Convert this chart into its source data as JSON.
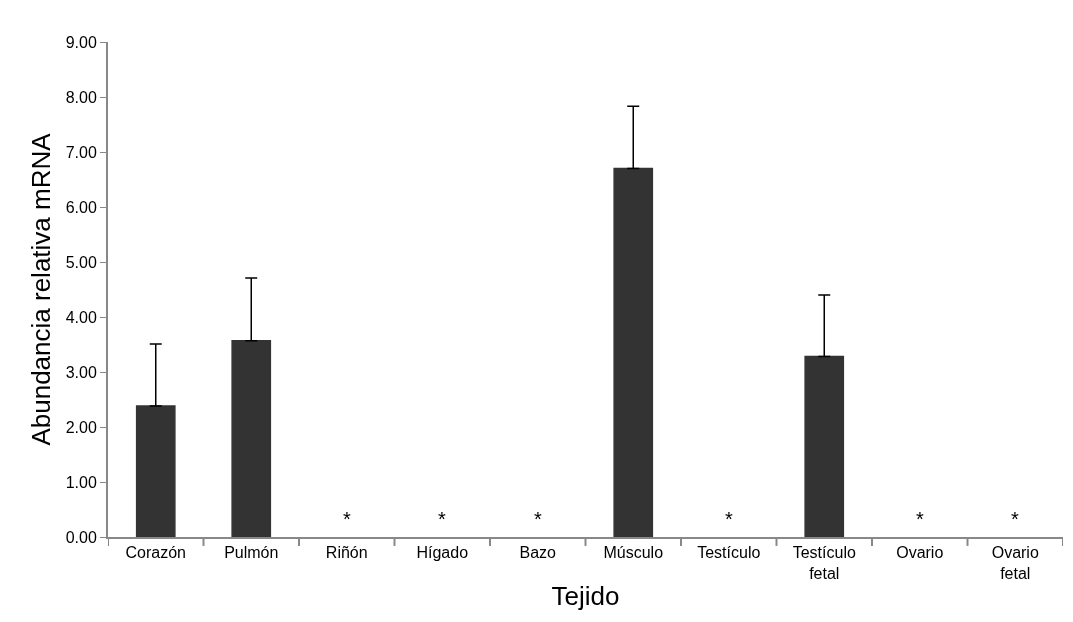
{
  "chart_data": {
    "type": "bar",
    "xlabel": "Tejido",
    "ylabel": "Abundancia relativa mRNA",
    "categories": [
      "Corazón",
      "Pulmón",
      "Riñón",
      "Hígado",
      "Bazo",
      "Músculo",
      "Testículo",
      "Testículo fetal",
      "Ovario",
      "Ovario fetal"
    ],
    "values": [
      2.38,
      3.57,
      null,
      null,
      null,
      6.7,
      null,
      3.28,
      null,
      null
    ],
    "errors": [
      [
        2.38,
        3.51
      ],
      [
        3.57,
        4.71
      ],
      null,
      null,
      null,
      [
        6.7,
        7.83
      ],
      null,
      [
        3.28,
        4.4
      ],
      null,
      null
    ],
    "color": "#333333",
    "ylim": [
      0,
      9
    ],
    "yticks": [
      {
        "value": 0,
        "label": "0.00"
      },
      {
        "value": 1,
        "label": "1.00"
      },
      {
        "value": 2,
        "label": "2.00"
      },
      {
        "value": 3,
        "label": "3.00"
      },
      {
        "value": 4,
        "label": "4.00"
      },
      {
        "value": 5,
        "label": "5.00"
      },
      {
        "value": 6,
        "label": "6.00"
      },
      {
        "value": 7,
        "label": "7.00"
      },
      {
        "value": 8,
        "label": "8.00"
      },
      {
        "value": 9,
        "label": "9.00"
      }
    ],
    "annotations": [
      "*",
      "*",
      "*",
      "*",
      "*",
      "*"
    ],
    "grid": false
  }
}
